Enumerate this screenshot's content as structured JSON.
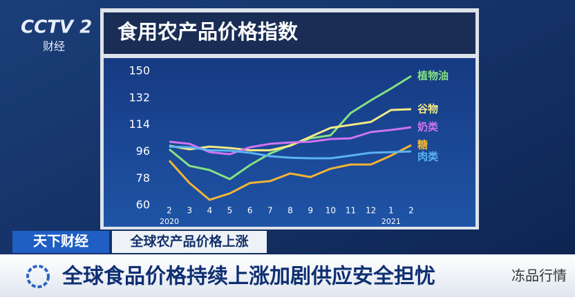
{
  "channel": {
    "logo": "CCTV 2",
    "name": "财经"
  },
  "watermark": "冻品行情",
  "program": "天下财经",
  "subtitle": "全球农产品价格上涨",
  "headline": "全球食品价格持续上涨加剧供应安全担忧",
  "chart_data": {
    "type": "line",
    "title": "食用农产品价格指数",
    "categories": [
      "2",
      "3",
      "4",
      "5",
      "6",
      "7",
      "8",
      "9",
      "10",
      "11",
      "12",
      "1",
      "2"
    ],
    "years": [
      "2020",
      null,
      null,
      null,
      null,
      null,
      null,
      null,
      null,
      null,
      null,
      "2021",
      null
    ],
    "ylim": [
      54,
      157
    ],
    "yticks": [
      60,
      78,
      96,
      114,
      132,
      150
    ],
    "series": [
      {
        "name": "植物油",
        "color": "#86e283",
        "values": [
          97.6,
          86.5,
          83.7,
          77.6,
          87,
          94.8,
          100.4,
          105,
          107,
          122,
          130.5,
          138.4,
          146.8
        ]
      },
      {
        "name": "谷物",
        "color": "#f6ea86",
        "values": [
          100,
          97.6,
          99.4,
          98.5,
          97,
          97,
          100,
          106,
          112,
          114,
          116,
          124,
          124.5
        ]
      },
      {
        "name": "奶类",
        "color": "#cf74f2",
        "values": [
          102.7,
          101.3,
          95.7,
          94.3,
          99,
          101.3,
          102.2,
          102.7,
          104.5,
          105,
          109.2,
          110.6,
          112.4
        ]
      },
      {
        "name": "糖",
        "color": "#f2b535",
        "values": [
          90,
          75,
          63.7,
          68,
          75,
          76.3,
          81.4,
          79,
          84.6,
          87.4,
          87.4,
          93.4,
          100.4
        ]
      },
      {
        "name": "肉类",
        "color": "#5cb4f2",
        "values": [
          99.4,
          99,
          97,
          96.7,
          95.3,
          93,
          92,
          91.6,
          91.6,
          93.4,
          95.3,
          95.7,
          96.2
        ]
      }
    ]
  }
}
